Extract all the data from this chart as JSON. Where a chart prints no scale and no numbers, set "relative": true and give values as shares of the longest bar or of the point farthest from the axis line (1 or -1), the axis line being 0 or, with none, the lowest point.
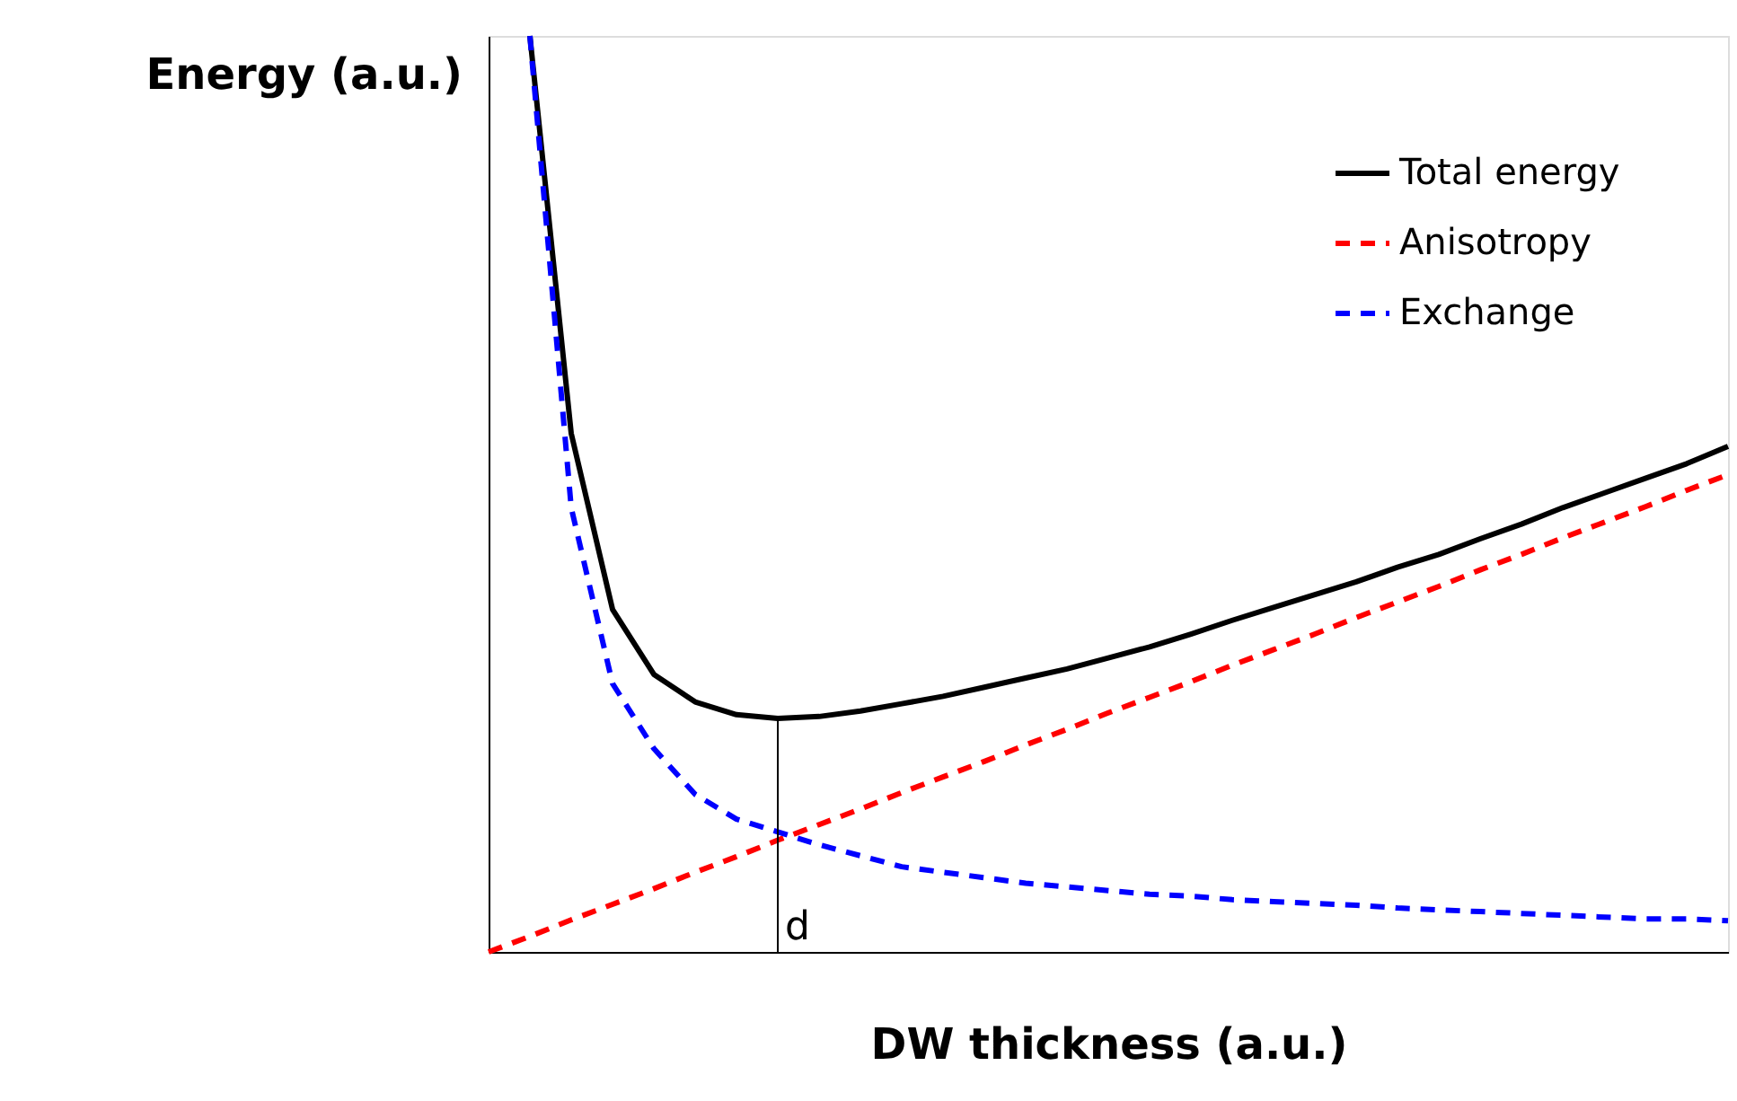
{
  "chart_data": {
    "type": "line",
    "relative": true,
    "xlabel": "DW thickness (a.u.)",
    "ylabel": "Energy (a.u.)",
    "categories": [
      null,
      null,
      null,
      null,
      null,
      null,
      null,
      null,
      null,
      null,
      null,
      null,
      null,
      null,
      null,
      null,
      null,
      null,
      null,
      null,
      null,
      null,
      null,
      null,
      null,
      null,
      null,
      null,
      null,
      null,
      null
    ],
    "series": [
      {
        "name": "Total energy",
        "color": "#000000",
        "line_style": "solid",
        "values": [
          null,
          1.0,
          0.566,
          0.374,
          0.303,
          0.273,
          0.259,
          0.255,
          0.257,
          0.263,
          0.271,
          0.279,
          0.289,
          0.299,
          0.309,
          0.321,
          0.333,
          0.347,
          0.362,
          0.376,
          0.39,
          0.404,
          0.42,
          0.434,
          0.451,
          0.467,
          0.485,
          0.501,
          0.517,
          0.533,
          0.552
        ]
      },
      {
        "name": "Anisotropy",
        "color": "#ff0000",
        "line_style": "dashed",
        "values": [
          0,
          0.017,
          0.035,
          0.052,
          0.069,
          0.087,
          0.104,
          0.122,
          0.139,
          0.156,
          0.174,
          0.191,
          0.208,
          0.226,
          0.243,
          0.261,
          0.278,
          0.295,
          0.313,
          0.33,
          0.347,
          0.365,
          0.382,
          0.399,
          0.417,
          0.434,
          0.452,
          0.469,
          0.486,
          0.504,
          0.521
        ]
      },
      {
        "name": "Exchange",
        "color": "#0000ff",
        "line_style": "dashed",
        "values": [
          null,
          1.0,
          0.485,
          0.293,
          0.222,
          0.172,
          0.145,
          0.131,
          0.117,
          0.105,
          0.093,
          0.087,
          0.081,
          0.075,
          0.071,
          0.067,
          0.063,
          0.061,
          0.057,
          0.055,
          0.053,
          0.051,
          0.048,
          0.046,
          0.044,
          0.042,
          0.04,
          0.038,
          0.036,
          0.036,
          0.034
        ]
      }
    ],
    "annotations": [
      "d"
    ],
    "legend": "top right",
    "grid": false,
    "marker": "none"
  }
}
